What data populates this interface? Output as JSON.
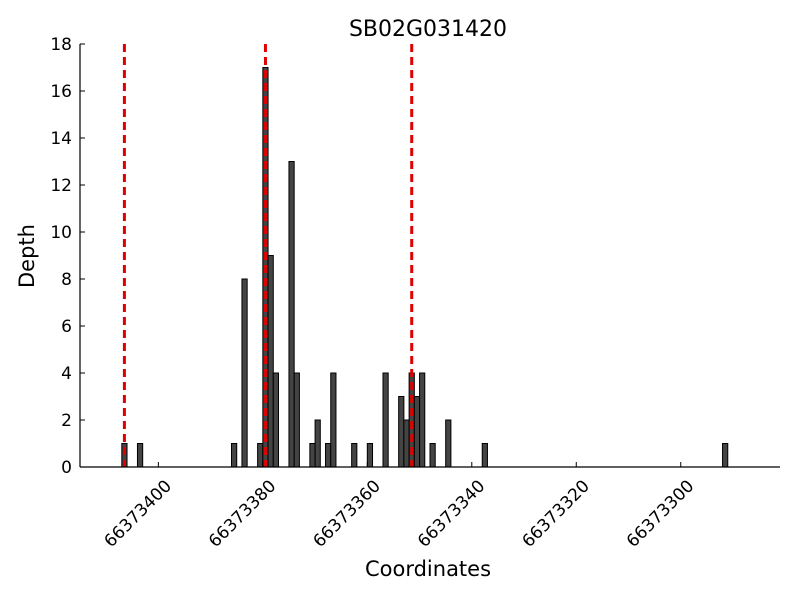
{
  "chart_data": {
    "type": "bar",
    "title": "SB02G031420",
    "x_label": "Coordinates",
    "y_label": "Depth",
    "x": [
      66373407,
      66373404,
      66373386,
      66373384,
      66373381,
      66373380,
      66373379,
      66373378,
      66373375,
      66373374,
      66373371,
      66373370,
      66373368,
      66373367,
      66373363,
      66373360,
      66373357,
      66373354,
      66373353,
      66373352,
      66373351,
      66373350,
      66373348,
      66373345,
      66373338,
      66373292
    ],
    "values": [
      1,
      1,
      1,
      8,
      1,
      17,
      9,
      4,
      13,
      4,
      1,
      2,
      1,
      4,
      1,
      1,
      4,
      3,
      2,
      4,
      3,
      4,
      1,
      2,
      1,
      1
    ],
    "color": "#444444",
    "xlim": [
      66373415,
      66373281
    ],
    "xticks": [
      66373400,
      66373380,
      66373360,
      66373340,
      66373320,
      66373300
    ],
    "ylim": [
      0,
      18
    ],
    "yticks": [
      0,
      2,
      4,
      6,
      8,
      10,
      12,
      14,
      16,
      18
    ],
    "vlines": {
      "x": [
        66373406.5,
        66373379.5,
        66373351.5
      ],
      "color": "#e00000"
    }
  }
}
